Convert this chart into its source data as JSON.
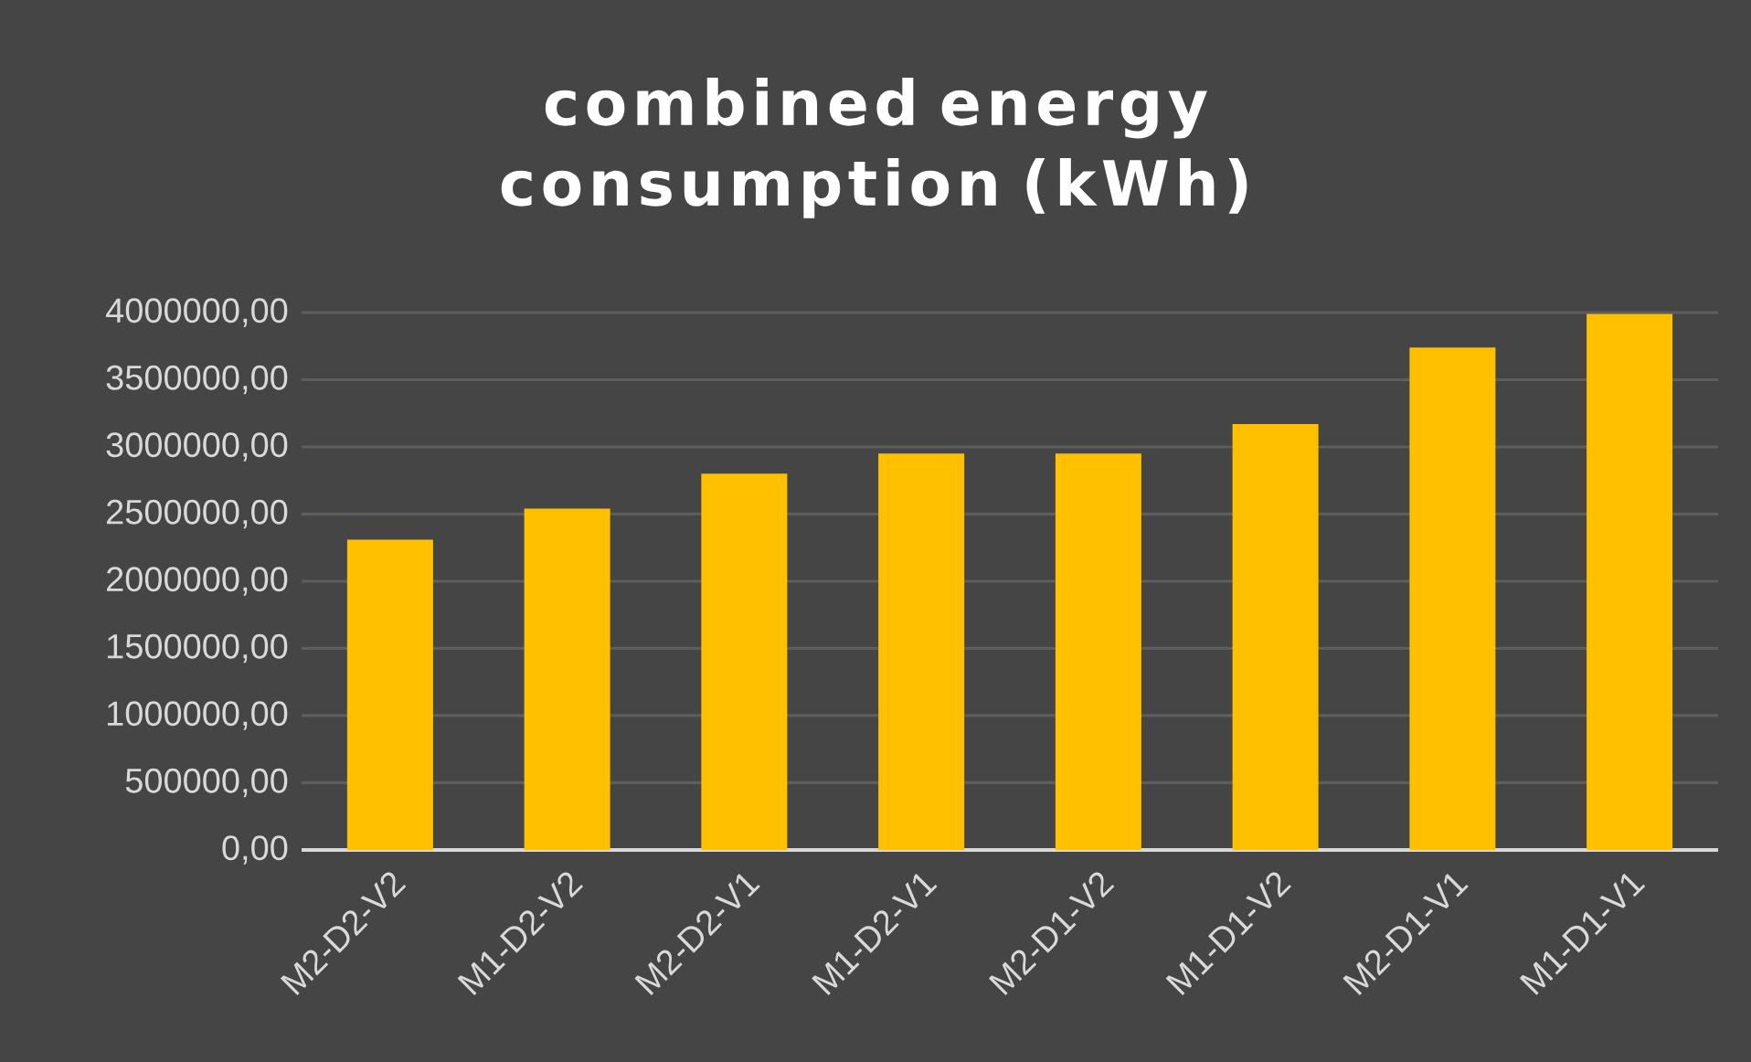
{
  "chart_data": {
    "type": "bar",
    "title": "combined energy consumption (kWh)",
    "categories": [
      "M2-D2-V2",
      "M1-D2-V2",
      "M2-D2-V1",
      "M1-D2-V1",
      "M2-D1-V2",
      "M1-D1-V2",
      "M2-D1-V1",
      "M1-D1-V1"
    ],
    "values": [
      2310000,
      2540000,
      2800000,
      2950000,
      2950000,
      3170000,
      3740000,
      3990000
    ],
    "color": "#ffc000",
    "ylim": [
      0,
      4000000
    ],
    "yticks": [
      {
        "value": 0,
        "label": "0,00"
      },
      {
        "value": 500000,
        "label": "500000,00"
      },
      {
        "value": 1000000,
        "label": "1000000,00"
      },
      {
        "value": 1500000,
        "label": "1500000,00"
      },
      {
        "value": 2000000,
        "label": "2000000,00"
      },
      {
        "value": 2500000,
        "label": "2500000,00"
      },
      {
        "value": 3000000,
        "label": "3000000,00"
      },
      {
        "value": 3500000,
        "label": "3500000,00"
      },
      {
        "value": 4000000,
        "label": "4000000,00"
      }
    ],
    "grid": "y"
  }
}
